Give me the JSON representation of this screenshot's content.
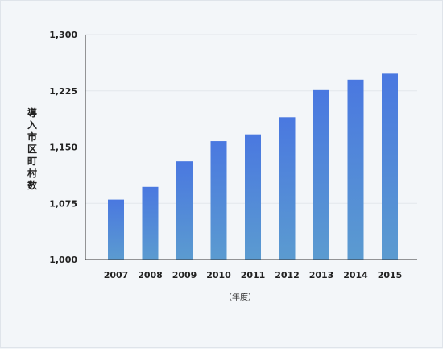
{
  "chart_data": {
    "type": "bar",
    "categories": [
      "2007",
      "2008",
      "2009",
      "2010",
      "2011",
      "2012",
      "2013",
      "2014",
      "2015"
    ],
    "values": [
      1080,
      1097,
      1131,
      1158,
      1167,
      1190,
      1226,
      1240,
      1248
    ],
    "ylim": [
      1000,
      1300
    ],
    "yticks": [
      1000,
      1075,
      1150,
      1225,
      1300
    ],
    "ytick_labels": [
      "1,000",
      "1,075",
      "1,150",
      "1,225",
      "1,300"
    ],
    "ylabel": "導入市区町村数",
    "xlabel": "（年度）",
    "title": "",
    "grid": true,
    "colors": {
      "bar_top": "#4a78e0",
      "bar_bottom": "#5b9bd0",
      "grid": "#e3e7ec",
      "axis": "#333333"
    }
  }
}
